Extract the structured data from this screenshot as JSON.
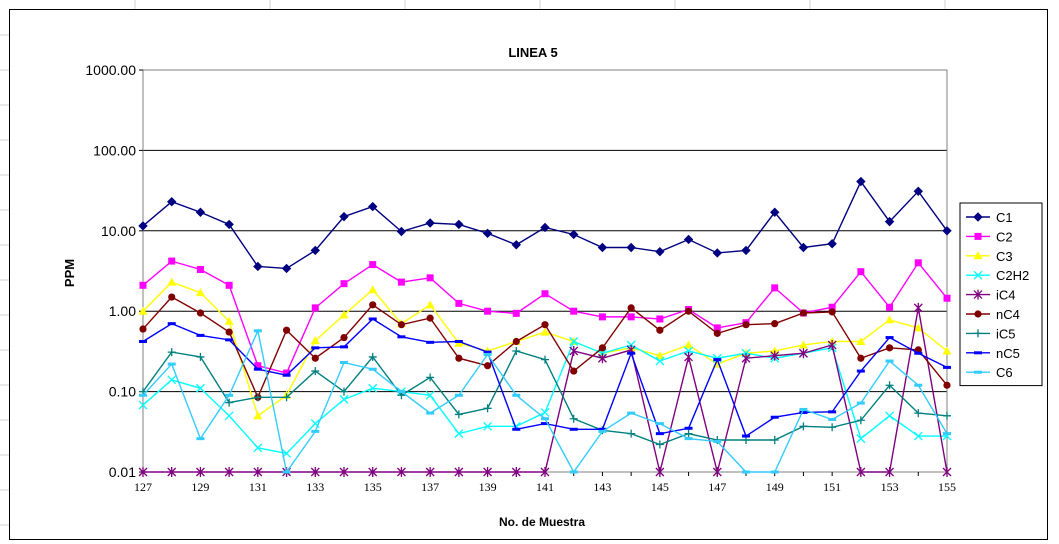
{
  "chart_data": {
    "type": "line",
    "title": "LINEA 5",
    "xlabel": "No. de Muestra",
    "ylabel": "PPM",
    "yscale": "log",
    "ylim": [
      0.01,
      1000
    ],
    "yticks": [
      0.01,
      0.1,
      1,
      10,
      100,
      1000
    ],
    "ytick_labels": [
      "0.01",
      "0.10",
      "1.00",
      "10.00",
      "100.00",
      "1000.00"
    ],
    "x": [
      127,
      128,
      129,
      130,
      131,
      132,
      133,
      134,
      135,
      136,
      137,
      138,
      139,
      140,
      141,
      142,
      143,
      144,
      145,
      146,
      147,
      148,
      149,
      150,
      151,
      152,
      153,
      154,
      155
    ],
    "xticks": [
      127,
      129,
      131,
      133,
      135,
      137,
      139,
      141,
      143,
      145,
      147,
      149,
      151,
      153,
      155
    ],
    "grid": "horizontal major",
    "legend_position": "right",
    "series": [
      {
        "name": "C1",
        "color": "#000080",
        "marker": "diamond",
        "values": [
          11.5,
          23,
          17,
          12,
          3.6,
          3.4,
          5.7,
          15,
          20,
          9.8,
          12.5,
          12,
          9.3,
          6.7,
          11,
          9,
          6.2,
          6.2,
          5.5,
          7.8,
          5.3,
          5.7,
          17,
          6.2,
          6.9,
          41,
          13,
          31,
          10
        ]
      },
      {
        "name": "C2",
        "color": "#ff00ff",
        "marker": "square",
        "values": [
          2.1,
          4.2,
          3.3,
          2.1,
          0.21,
          0.17,
          1.1,
          2.2,
          3.8,
          2.3,
          2.6,
          1.25,
          1.0,
          0.94,
          1.65,
          1.0,
          0.85,
          0.85,
          0.8,
          1.05,
          0.62,
          0.72,
          1.95,
          0.95,
          1.12,
          3.1,
          1.12,
          4.0,
          1.45
        ]
      },
      {
        "name": "C3",
        "color": "#ffff00",
        "marker": "triangle",
        "values": [
          1.0,
          2.3,
          1.7,
          0.75,
          0.05,
          0.09,
          0.43,
          0.9,
          1.85,
          0.7,
          1.2,
          0.4,
          0.32,
          0.42,
          0.55,
          0.42,
          0.3,
          0.35,
          0.28,
          0.38,
          0.22,
          0.3,
          0.32,
          0.38,
          0.42,
          0.42,
          0.78,
          0.62,
          0.32
        ]
      },
      {
        "name": "C2H2",
        "color": "#00ffff",
        "marker": "x",
        "values": [
          0.068,
          0.14,
          0.11,
          0.05,
          0.02,
          0.017,
          0.04,
          0.08,
          0.11,
          0.1,
          0.09,
          0.03,
          0.037,
          0.037,
          0.055,
          0.42,
          0.3,
          0.38,
          0.24,
          0.32,
          0.26,
          0.3,
          0.26,
          0.3,
          0.35,
          0.026,
          0.05,
          0.028,
          0.028
        ]
      },
      {
        "name": "iC4",
        "color": "#800080",
        "marker": "star",
        "values": [
          0.01,
          0.01,
          0.01,
          0.01,
          0.01,
          0.01,
          0.01,
          0.01,
          0.01,
          0.01,
          0.01,
          0.01,
          0.01,
          0.01,
          0.01,
          0.32,
          0.26,
          0.33,
          0.01,
          0.27,
          0.01,
          0.26,
          0.28,
          0.3,
          0.38,
          0.01,
          0.01,
          1.1,
          0.01
        ]
      },
      {
        "name": "nC4",
        "color": "#800000",
        "marker": "circle",
        "values": [
          0.6,
          1.5,
          0.95,
          0.55,
          0.085,
          0.58,
          0.26,
          0.47,
          1.2,
          0.68,
          0.82,
          0.26,
          0.21,
          0.42,
          0.68,
          0.18,
          0.35,
          1.1,
          0.58,
          1.0,
          0.53,
          0.68,
          0.7,
          0.95,
          0.98,
          0.26,
          0.35,
          0.33,
          0.12
        ]
      },
      {
        "name": "iC5",
        "color": "#008080",
        "marker": "plus",
        "values": [
          0.1,
          0.31,
          0.27,
          0.073,
          0.085,
          0.085,
          0.18,
          0.1,
          0.27,
          0.09,
          0.15,
          0.052,
          0.062,
          0.32,
          0.25,
          0.046,
          0.033,
          0.03,
          0.022,
          0.03,
          0.025,
          0.025,
          0.025,
          0.037,
          0.036,
          0.044,
          0.12,
          0.054,
          0.05
        ]
      },
      {
        "name": "nC5",
        "color": "#0000ff",
        "marker": "dash",
        "values": [
          0.42,
          0.7,
          0.5,
          0.44,
          0.19,
          0.16,
          0.35,
          0.36,
          0.8,
          0.48,
          0.41,
          0.42,
          0.31,
          0.034,
          0.04,
          0.034,
          0.034,
          0.3,
          0.03,
          0.035,
          0.25,
          0.028,
          0.048,
          0.055,
          0.056,
          0.18,
          0.47,
          0.3,
          0.2
        ]
      },
      {
        "name": "C6",
        "color": "#33ccff",
        "marker": "dash",
        "values": [
          0.09,
          0.22,
          0.026,
          0.09,
          0.57,
          0.01,
          0.032,
          0.23,
          0.19,
          0.1,
          0.054,
          0.09,
          0.29,
          0.09,
          0.046,
          0.01,
          0.032,
          0.054,
          0.04,
          0.026,
          0.024,
          0.01,
          0.01,
          0.06,
          0.045,
          0.072,
          0.24,
          0.12,
          0.03
        ]
      }
    ]
  }
}
